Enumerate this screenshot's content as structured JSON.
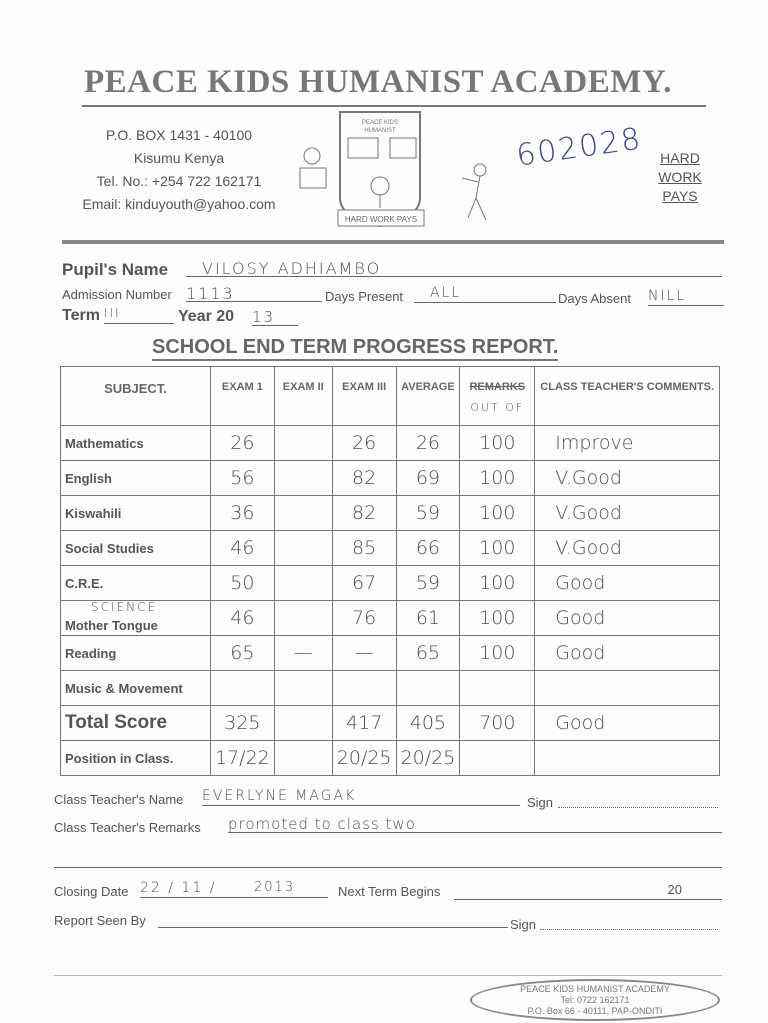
{
  "school": {
    "name": "PEACE KIDS HUMANIST ACADEMY.",
    "address": [
      "P.O. BOX 1431 - 40100",
      "Kisumu Kenya",
      "Tel. No.: +254 722 162171",
      "Email: kinduyouth@yahoo.com"
    ],
    "motto": [
      "HARD",
      "WORK",
      "PAYS"
    ],
    "crest_text": "PEACE KIDS HUMANIST ACADEMY",
    "crest_banner": "HARD WORK PAYS",
    "ref_number": "602028"
  },
  "pupil": {
    "name_label": "Pupil's Name",
    "name": "VILOSY ADHIAMBO",
    "adm_label": "Admission Number",
    "adm": "1113",
    "present_label": "Days Present",
    "present": "ALL",
    "absent_label": "Days Absent",
    "absent": "NILL",
    "term_label": "Term",
    "term": "III",
    "year_label": "Year 20",
    "year": "13"
  },
  "report_title": "SCHOOL END TERM PROGRESS REPORT.",
  "table": {
    "headers": [
      "SUBJECT.",
      "EXAM 1",
      "EXAM II",
      "EXAM III",
      "AVERAGE",
      "REMARKS",
      "CLASS TEACHER'S COMMENTS."
    ],
    "remarks_note": "OUT OF",
    "rows": [
      {
        "subject": "Mathematics",
        "e1": "26",
        "e2": "",
        "e3": "26",
        "avg": "26",
        "out": "100",
        "comment": "Improve"
      },
      {
        "subject": "English",
        "e1": "56",
        "e2": "",
        "e3": "82",
        "avg": "69",
        "out": "100",
        "comment": "V.Good"
      },
      {
        "subject": "Kiswahili",
        "e1": "36",
        "e2": "",
        "e3": "82",
        "avg": "59",
        "out": "100",
        "comment": "V.Good"
      },
      {
        "subject": "Social Studies",
        "e1": "46",
        "e2": "",
        "e3": "85",
        "avg": "66",
        "out": "100",
        "comment": "V.Good"
      },
      {
        "subject": "C.R.E.",
        "e1": "50",
        "e2": "",
        "e3": "67",
        "avg": "59",
        "out": "100",
        "comment": "Good"
      },
      {
        "subject": "Mother Tongue",
        "subject_note": "SCIENCE",
        "e1": "46",
        "e2": "",
        "e3": "76",
        "avg": "61",
        "out": "100",
        "comment": "Good"
      },
      {
        "subject": "Reading",
        "e1": "65",
        "e2": "—",
        "e3": "—",
        "avg": "65",
        "out": "100",
        "comment": "Good"
      },
      {
        "subject": "Music & Movement",
        "e1": "",
        "e2": "",
        "e3": "",
        "avg": "",
        "out": "",
        "comment": ""
      },
      {
        "subject": "Total Score",
        "e1": "325",
        "e2": "",
        "e3": "417",
        "avg": "405",
        "out": "700",
        "comment": "Good"
      },
      {
        "subject": "Position in Class.",
        "e1": "17/22",
        "e2": "",
        "e3": "20/25",
        "avg": "20/25",
        "out": "",
        "comment": ""
      }
    ]
  },
  "footer": {
    "teacher_label": "Class Teacher's Name",
    "teacher": "EVERLYNE MAGAK",
    "sign_label": "Sign",
    "remarks_label": "Class Teacher's Remarks",
    "remarks": "promoted to class two",
    "closing_label": "Closing Date",
    "closing": "22 / 11 /",
    "closing_year": "2013",
    "next_label": "Next Term Begins",
    "next_year": "20",
    "seen_label": "Report Seen By",
    "sign2_label": "Sign"
  },
  "stamp": {
    "text": "PEACE KIDS HUMANIST ACADEMY",
    "tel": "Tel: 0722 162171",
    "box": "P.O. Box 66 - 40111, PAP-ONDITI"
  }
}
